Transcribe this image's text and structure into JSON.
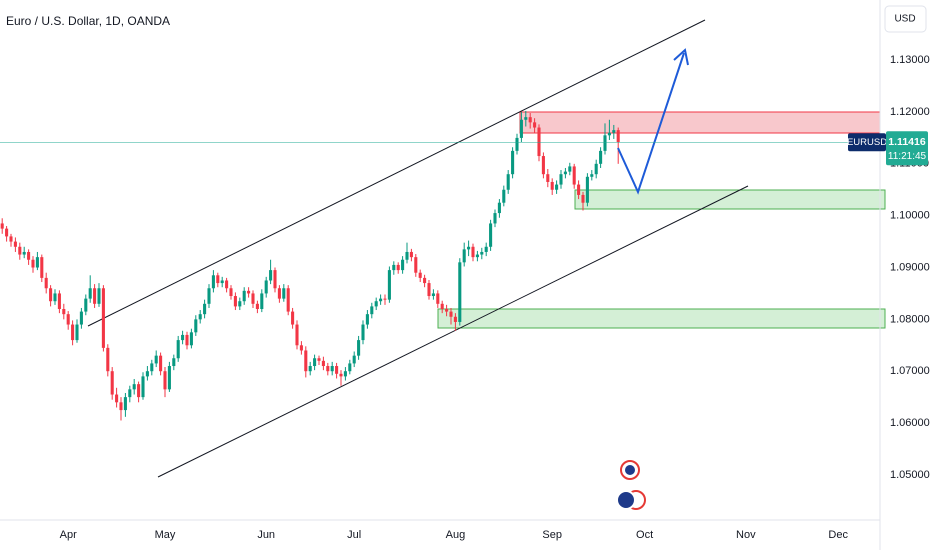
{
  "chart_data": {
    "type": "candlestick",
    "title": "Euro / U.S. Dollar, 1D, OANDA",
    "currency": "USD",
    "symbol_tag": "EURUSD",
    "last_price": 1.11416,
    "countdown": "11:21:45",
    "up_color": "#089981",
    "down_color": "#f23645",
    "last_price_color": "#22ab94",
    "grid": false,
    "xlim": [
      -0.5,
      199.5
    ],
    "xticks": [
      {
        "value": 15,
        "label": "Apr"
      },
      {
        "value": 37,
        "label": "May"
      },
      {
        "value": 60,
        "label": "Jun"
      },
      {
        "value": 80,
        "label": "Jul"
      },
      {
        "value": 103,
        "label": "Aug"
      },
      {
        "value": 125,
        "label": "Sep"
      },
      {
        "value": 146,
        "label": "Oct"
      },
      {
        "value": 169,
        "label": "Nov"
      },
      {
        "value": 190,
        "label": "Dec"
      }
    ],
    "ylim": [
      1.0413,
      1.1416
    ],
    "yticks": [
      {
        "value": 1.05,
        "label": "1.05000"
      },
      {
        "value": 1.06,
        "label": "1.06000"
      },
      {
        "value": 1.07,
        "label": "1.07000"
      },
      {
        "value": 1.08,
        "label": "1.08000"
      },
      {
        "value": 1.09,
        "label": "1.09000"
      },
      {
        "value": 1.1,
        "label": "1.10000"
      },
      {
        "value": 1.11,
        "label": "1.11000"
      },
      {
        "value": 1.12,
        "label": "1.12000"
      },
      {
        "value": 1.13,
        "label": "1.13000"
      }
    ],
    "candles": [
      [
        1.0985,
        1.0995,
        1.0965,
        1.0975
      ],
      [
        1.0975,
        1.098,
        1.095,
        1.096
      ],
      [
        1.096,
        1.0965,
        1.094,
        1.095
      ],
      [
        1.095,
        1.0958,
        1.093,
        1.094
      ],
      [
        1.094,
        1.0948,
        1.0915,
        1.0925
      ],
      [
        1.0925,
        1.094,
        1.0918,
        1.093
      ],
      [
        1.093,
        1.0935,
        1.0905,
        1.0915
      ],
      [
        1.0915,
        1.0922,
        1.089,
        1.09
      ],
      [
        1.09,
        1.093,
        1.0895,
        1.092
      ],
      [
        1.092,
        1.0925,
        1.0872,
        1.088
      ],
      [
        1.088,
        1.089,
        1.085,
        1.086
      ],
      [
        1.086,
        1.0866,
        1.0825,
        1.0835
      ],
      [
        1.0835,
        1.0858,
        1.0828,
        1.085
      ],
      [
        1.085,
        1.0856,
        1.0812,
        1.082
      ],
      [
        1.082,
        1.083,
        1.08,
        1.081
      ],
      [
        1.081,
        1.0816,
        1.078,
        1.079
      ],
      [
        1.079,
        1.0798,
        1.075,
        1.076
      ],
      [
        1.076,
        1.08,
        1.0755,
        1.079
      ],
      [
        1.079,
        1.0822,
        1.0782,
        1.0815
      ],
      [
        1.0815,
        1.0848,
        1.0808,
        1.084
      ],
      [
        1.084,
        1.0885,
        1.0832,
        1.086
      ],
      [
        1.086,
        1.0868,
        1.0822,
        1.083
      ],
      [
        1.083,
        1.087,
        1.0824,
        1.086
      ],
      [
        1.086,
        1.0866,
        1.0738,
        1.0745
      ],
      [
        1.0745,
        1.0752,
        1.069,
        1.07
      ],
      [
        1.07,
        1.0708,
        1.0645,
        1.0655
      ],
      [
        1.0655,
        1.0668,
        1.063,
        1.064
      ],
      [
        1.064,
        1.065,
        1.0605,
        1.0625
      ],
      [
        1.0625,
        1.0658,
        1.0612,
        1.065
      ],
      [
        1.065,
        1.0672,
        1.064,
        1.0665
      ],
      [
        1.0665,
        1.0685,
        1.0655,
        1.0675
      ],
      [
        1.0675,
        1.068,
        1.064,
        1.065
      ],
      [
        1.065,
        1.0698,
        1.0645,
        1.069
      ],
      [
        1.069,
        1.071,
        1.0682,
        1.07
      ],
      [
        1.07,
        1.0722,
        1.0692,
        1.0715
      ],
      [
        1.0715,
        1.074,
        1.0708,
        1.073
      ],
      [
        1.073,
        1.0736,
        1.0692,
        1.07
      ],
      [
        1.07,
        1.0708,
        1.065,
        1.0665
      ],
      [
        1.0665,
        1.0718,
        1.066,
        1.071
      ],
      [
        1.071,
        1.0732,
        1.0702,
        1.0725
      ],
      [
        1.0725,
        1.0768,
        1.0718,
        1.076
      ],
      [
        1.076,
        1.0778,
        1.0752,
        1.077
      ],
      [
        1.077,
        1.0776,
        1.0742,
        1.075
      ],
      [
        1.075,
        1.0782,
        1.0744,
        1.0775
      ],
      [
        1.0775,
        1.0808,
        1.0768,
        1.08
      ],
      [
        1.08,
        1.0818,
        1.0792,
        1.081
      ],
      [
        1.081,
        1.0838,
        1.0802,
        1.083
      ],
      [
        1.083,
        1.0868,
        1.0822,
        1.086
      ],
      [
        1.086,
        1.0895,
        1.0852,
        1.0885
      ],
      [
        1.0885,
        1.089,
        1.0862,
        1.087
      ],
      [
        1.087,
        1.0882,
        1.0862,
        1.0875
      ],
      [
        1.0875,
        1.088,
        1.0852,
        1.086
      ],
      [
        1.086,
        1.0866,
        1.0838,
        1.0845
      ],
      [
        1.0845,
        1.0852,
        1.0818,
        1.0825
      ],
      [
        1.0825,
        1.0842,
        1.0818,
        1.0835
      ],
      [
        1.0835,
        1.0862,
        1.0828,
        1.0855
      ],
      [
        1.0855,
        1.0862,
        1.0842,
        1.085
      ],
      [
        1.085,
        1.0856,
        1.0822,
        1.083
      ],
      [
        1.083,
        1.0836,
        1.0812,
        1.082
      ],
      [
        1.082,
        1.0858,
        1.0814,
        1.085
      ],
      [
        1.085,
        1.0882,
        1.0842,
        1.0875
      ],
      [
        1.0875,
        1.0915,
        1.0868,
        1.0895
      ],
      [
        1.0895,
        1.09,
        1.0852,
        1.086
      ],
      [
        1.086,
        1.0866,
        1.0832,
        1.084
      ],
      [
        1.084,
        1.0868,
        1.0834,
        1.086
      ],
      [
        1.086,
        1.0866,
        1.0808,
        1.0815
      ],
      [
        1.0815,
        1.0822,
        1.0782,
        1.079
      ],
      [
        1.079,
        1.0798,
        1.0742,
        1.075
      ],
      [
        1.075,
        1.0758,
        1.0732,
        1.074
      ],
      [
        1.074,
        1.0748,
        1.0688,
        1.07
      ],
      [
        1.07,
        1.0718,
        1.0692,
        1.071
      ],
      [
        1.071,
        1.0732,
        1.0702,
        1.0725
      ],
      [
        1.0725,
        1.073,
        1.0712,
        1.072
      ],
      [
        1.072,
        1.0728,
        1.0702,
        1.071
      ],
      [
        1.071,
        1.0716,
        1.0692,
        1.07
      ],
      [
        1.07,
        1.0718,
        1.0692,
        1.071
      ],
      [
        1.071,
        1.0716,
        1.0686,
        1.0695
      ],
      [
        1.0695,
        1.0702,
        1.0672,
        1.069
      ],
      [
        1.069,
        1.0708,
        1.0682,
        1.07
      ],
      [
        1.07,
        1.0722,
        1.0694,
        1.0715
      ],
      [
        1.0715,
        1.0738,
        1.0708,
        1.073
      ],
      [
        1.073,
        1.0768,
        1.0722,
        1.076
      ],
      [
        1.076,
        1.0798,
        1.0752,
        1.079
      ],
      [
        1.079,
        1.0818,
        1.0782,
        1.081
      ],
      [
        1.081,
        1.0832,
        1.0802,
        1.0825
      ],
      [
        1.0825,
        1.0842,
        1.0818,
        1.0835
      ],
      [
        1.0835,
        1.0848,
        1.0828,
        1.084
      ],
      [
        1.084,
        1.0848,
        1.0828,
        1.0838
      ],
      [
        1.0838,
        1.0902,
        1.0832,
        1.0895
      ],
      [
        1.0895,
        1.0912,
        1.0886,
        1.0905
      ],
      [
        1.0905,
        1.091,
        1.0888,
        1.0895
      ],
      [
        1.0895,
        1.0922,
        1.0888,
        1.0915
      ],
      [
        1.0915,
        1.0948,
        1.0908,
        1.093
      ],
      [
        1.093,
        1.0936,
        1.0912,
        1.092
      ],
      [
        1.092,
        1.0926,
        1.0882,
        1.089
      ],
      [
        1.089,
        1.0896,
        1.0872,
        1.088
      ],
      [
        1.088,
        1.0886,
        1.0862,
        1.087
      ],
      [
        1.087,
        1.0876,
        1.0838,
        1.0845
      ],
      [
        1.0845,
        1.0858,
        1.0838,
        1.085
      ],
      [
        1.085,
        1.0856,
        1.0822,
        1.083
      ],
      [
        1.083,
        1.0836,
        1.0812,
        1.082
      ],
      [
        1.082,
        1.0828,
        1.0806,
        1.0815
      ],
      [
        1.0815,
        1.0822,
        1.079,
        1.0805
      ],
      [
        1.0805,
        1.0812,
        1.0778,
        1.0795
      ],
      [
        1.0795,
        1.0918,
        1.0788,
        1.091
      ],
      [
        1.091,
        1.0948,
        1.0902,
        1.0935
      ],
      [
        1.0935,
        1.0952,
        1.0922,
        1.094
      ],
      [
        1.094,
        1.0946,
        1.0912,
        1.092
      ],
      [
        1.092,
        1.0932,
        1.0912,
        1.0925
      ],
      [
        1.0925,
        1.0938,
        1.0916,
        1.093
      ],
      [
        1.093,
        1.0948,
        1.0922,
        1.094
      ],
      [
        1.094,
        1.0992,
        1.0932,
        1.0985
      ],
      [
        1.0985,
        1.1012,
        1.0978,
        1.1005
      ],
      [
        1.1005,
        1.1032,
        1.0996,
        1.1025
      ],
      [
        1.1025,
        1.1058,
        1.1018,
        1.105
      ],
      [
        1.105,
        1.1088,
        1.1042,
        1.108
      ],
      [
        1.108,
        1.1132,
        1.1072,
        1.1125
      ],
      [
        1.1125,
        1.1158,
        1.1118,
        1.115
      ],
      [
        1.115,
        1.12,
        1.1142,
        1.1185
      ],
      [
        1.1185,
        1.1202,
        1.1172,
        1.119
      ],
      [
        1.119,
        1.1198,
        1.1168,
        1.118
      ],
      [
        1.118,
        1.1188,
        1.116,
        1.117
      ],
      [
        1.117,
        1.1176,
        1.1105,
        1.1115
      ],
      [
        1.1115,
        1.1122,
        1.1072,
        1.108
      ],
      [
        1.108,
        1.109,
        1.1055,
        1.1065
      ],
      [
        1.1065,
        1.1072,
        1.104,
        1.105
      ],
      [
        1.105,
        1.1068,
        1.1042,
        1.106
      ],
      [
        1.106,
        1.1088,
        1.1052,
        1.108
      ],
      [
        1.108,
        1.1092,
        1.1072,
        1.1085
      ],
      [
        1.1085,
        1.1102,
        1.1078,
        1.1095
      ],
      [
        1.1095,
        1.11,
        1.1052,
        1.106
      ],
      [
        1.106,
        1.1068,
        1.1032,
        1.104
      ],
      [
        1.104,
        1.1046,
        1.101,
        1.1025
      ],
      [
        1.1025,
        1.1082,
        1.1018,
        1.1075
      ],
      [
        1.1075,
        1.1088,
        1.1068,
        1.108
      ],
      [
        1.108,
        1.1108,
        1.1072,
        1.11
      ],
      [
        1.11,
        1.1132,
        1.1092,
        1.1125
      ],
      [
        1.1125,
        1.1178,
        1.1118,
        1.1155
      ],
      [
        1.1155,
        1.1185,
        1.1146,
        1.116
      ],
      [
        1.116,
        1.1175,
        1.1148,
        1.1165
      ],
      [
        1.1165,
        1.117,
        1.11,
        1.11416
      ]
    ]
  }
}
